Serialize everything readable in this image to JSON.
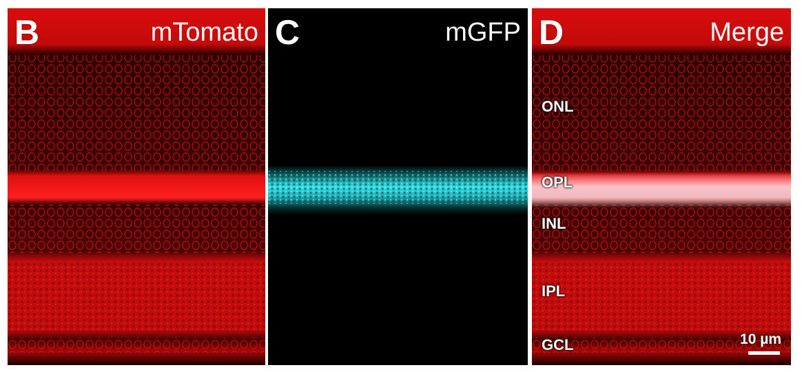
{
  "panels": [
    {
      "letter": "B",
      "channel": "mTomato",
      "color": "#ff1a1a"
    },
    {
      "letter": "C",
      "channel": "mGFP",
      "color": "#2fe0e6"
    },
    {
      "letter": "D",
      "channel": "Merge",
      "color": "#ff1a1a"
    }
  ],
  "layers": [
    "ONL",
    "OPL",
    "INL",
    "IPL",
    "GCL"
  ],
  "scale_bar": {
    "label": "10 µm"
  }
}
